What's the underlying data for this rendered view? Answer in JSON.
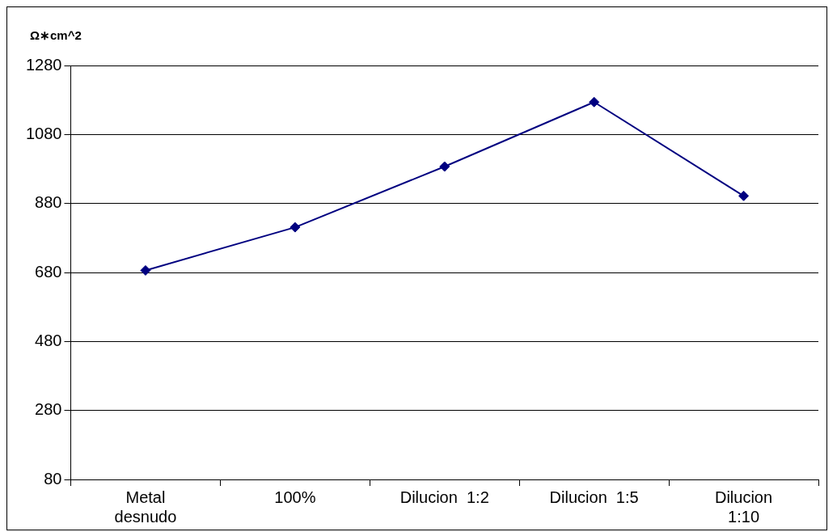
{
  "chart_data": {
    "type": "line",
    "ylabel": "Ω∗cm^2",
    "categories": [
      "Metal desnudo",
      "100%",
      "Dilucion  1:2",
      "Dilucion  1:5",
      "Dilucion 1:10"
    ],
    "series": [
      {
        "color": "#000080",
        "values": [
          686,
          811,
          987,
          1174,
          902
        ]
      }
    ],
    "ylim": [
      80,
      1280
    ],
    "yticks": [
      80,
      280,
      480,
      680,
      880,
      1080,
      1280
    ],
    "grid": "y",
    "legend": false,
    "marker": "diamond",
    "line_style": "solid"
  }
}
